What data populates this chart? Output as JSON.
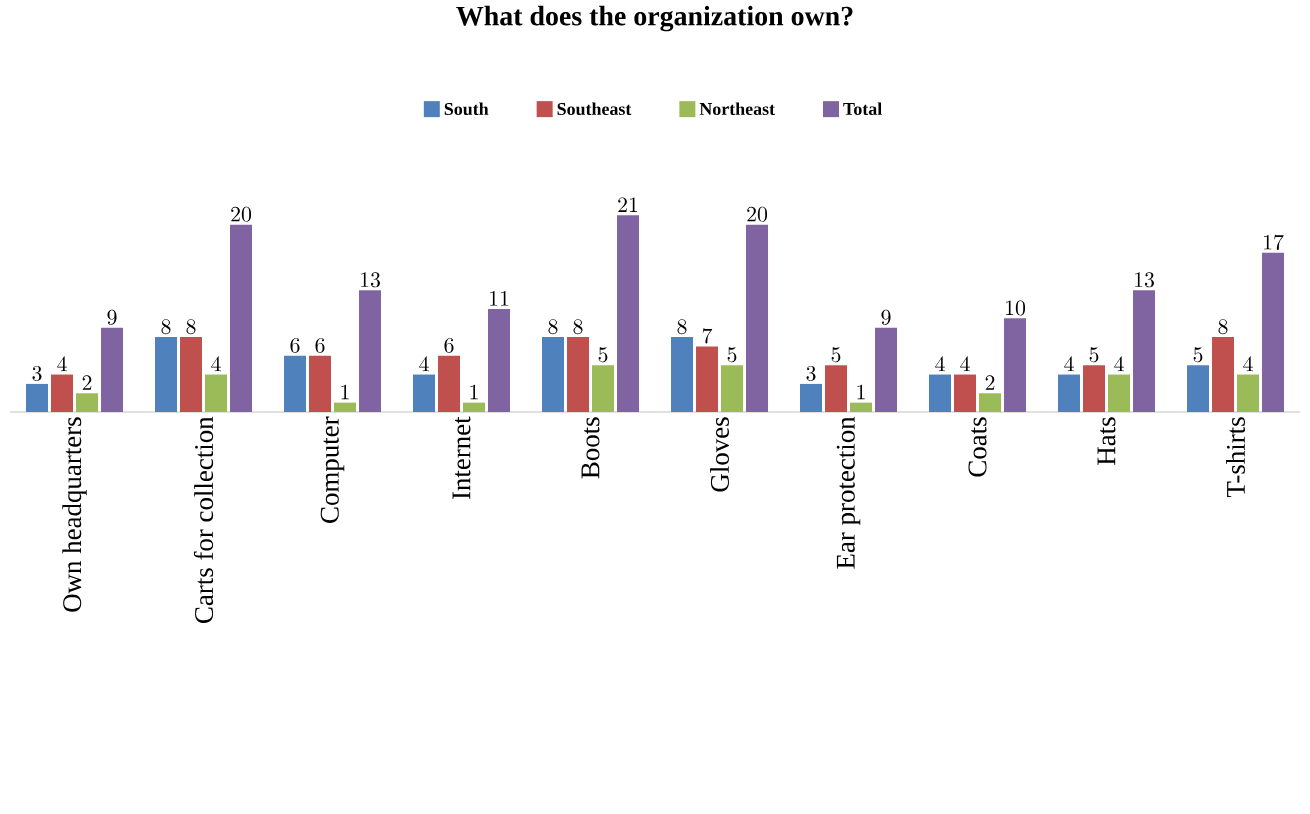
{
  "chart_data": {
    "type": "bar",
    "title": "What does the organization own?",
    "categories": [
      "Own headquarters",
      "Carts for collection",
      "Computer",
      "Internet",
      "Boots",
      "Gloves",
      "Ear protection",
      "Coats",
      "Hats",
      "T-shirts"
    ],
    "series": [
      {
        "name": "South",
        "color": "#4f81bd",
        "values": [
          3,
          8,
          6,
          4,
          8,
          8,
          3,
          4,
          4,
          5
        ]
      },
      {
        "name": "Southeast",
        "color": "#c0504d",
        "values": [
          4,
          8,
          6,
          6,
          8,
          7,
          5,
          4,
          5,
          8
        ]
      },
      {
        "name": "Northeast",
        "color": "#9bbb59",
        "values": [
          2,
          4,
          1,
          1,
          5,
          5,
          1,
          2,
          4,
          4
        ]
      },
      {
        "name": "Total",
        "color": "#8064a2",
        "values": [
          9,
          20,
          13,
          11,
          21,
          20,
          9,
          10,
          13,
          17
        ]
      }
    ],
    "data_labels": true,
    "legend": "top"
  }
}
